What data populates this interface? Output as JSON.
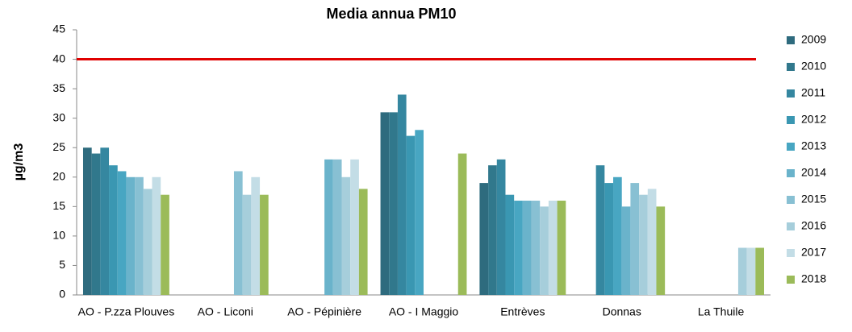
{
  "chart_data": {
    "type": "bar",
    "title": "Media annua PM10",
    "y_label": "µg/m3",
    "categories": [
      "AO - P.zza Plouves",
      "AO - Liconi",
      "AO - Pépinière",
      "AO - I  Maggio",
      "Entrèves",
      "Donnas",
      "La Thuile"
    ],
    "series": [
      {
        "name": "2009",
        "color": "#2e6b7e",
        "values": [
          25,
          null,
          null,
          31,
          19,
          null,
          null
        ]
      },
      {
        "name": "2010",
        "color": "#31788c",
        "values": [
          24,
          null,
          null,
          31,
          22,
          null,
          null
        ]
      },
      {
        "name": "2011",
        "color": "#3587a0",
        "values": [
          25,
          null,
          null,
          34,
          23,
          22,
          null
        ]
      },
      {
        "name": "2012",
        "color": "#3a97b2",
        "values": [
          22,
          null,
          null,
          27,
          17,
          19,
          null
        ]
      },
      {
        "name": "2013",
        "color": "#48a6c2",
        "values": [
          21,
          null,
          null,
          28,
          16,
          20,
          null
        ]
      },
      {
        "name": "2014",
        "color": "#6ab3cb",
        "values": [
          20,
          null,
          23,
          null,
          16,
          15,
          null
        ]
      },
      {
        "name": "2015",
        "color": "#88c0d3",
        "values": [
          20,
          21,
          23,
          null,
          16,
          19,
          null
        ]
      },
      {
        "name": "2016",
        "color": "#a6cedb",
        "values": [
          18,
          17,
          20,
          null,
          15,
          17,
          8
        ]
      },
      {
        "name": "2017",
        "color": "#c3dde6",
        "values": [
          20,
          20,
          23,
          null,
          16,
          18,
          8
        ]
      },
      {
        "name": "2018",
        "color": "#9bbb59",
        "values": [
          17,
          17,
          18,
          24,
          16,
          15,
          8
        ]
      }
    ],
    "reference_line": {
      "value": 40,
      "color": "#e00000"
    },
    "ylim": [
      0,
      45
    ],
    "yticks": [
      0,
      5,
      10,
      15,
      20,
      25,
      30,
      35,
      40,
      45
    ],
    "grid": false,
    "legend": "right"
  }
}
